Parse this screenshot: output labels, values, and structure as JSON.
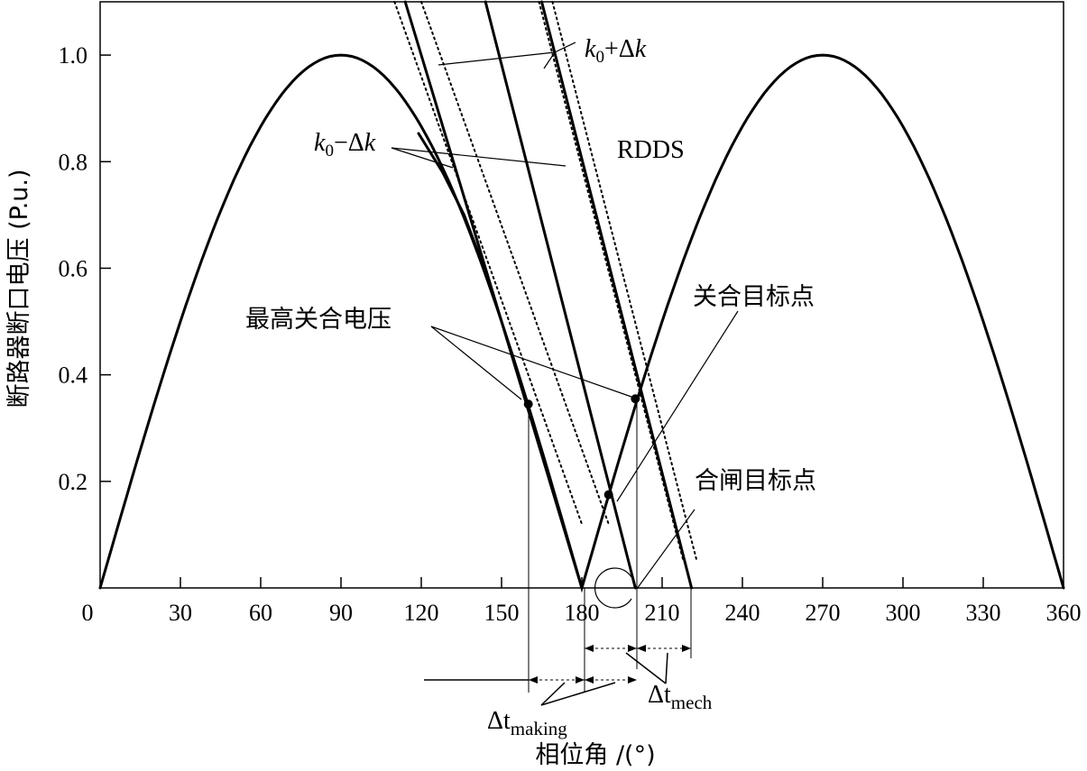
{
  "chart_data": {
    "type": "line",
    "xlabel": "相位角 /(°)",
    "ylabel": "断路器断口电压 (P.u.)",
    "xlim": [
      0,
      360
    ],
    "ylim": [
      0,
      1.1
    ],
    "x_ticks": [
      "0",
      "30",
      "60",
      "90",
      "120",
      "150",
      "180",
      "210",
      "240",
      "270",
      "300",
      "330",
      "360"
    ],
    "y_ticks": [
      "0.2",
      "0.4",
      "0.6",
      "0.8",
      "1.0"
    ],
    "grid": false,
    "series": [
      {
        "kind": "rdds",
        "x": [
          0,
          15,
          30,
          45,
          60,
          75,
          90,
          105,
          120,
          135,
          150,
          165,
          180,
          195,
          210,
          225,
          240,
          255,
          270,
          285,
          300,
          315,
          330,
          345,
          360
        ],
        "y": [
          0,
          0.259,
          0.5,
          0.707,
          0.866,
          0.966,
          1.0,
          0.966,
          0.866,
          0.707,
          0.5,
          0.259,
          0,
          0.259,
          0.5,
          0.707,
          0.866,
          0.966,
          1.0,
          0.966,
          0.866,
          0.707,
          0.5,
          0.259,
          0
        ]
      },
      {
        "kind": "rdds_left_tail",
        "x": [
          119,
          128,
          136,
          145
        ],
        "y": [
          0.853,
          0.78,
          0.7,
          0.58
        ]
      },
      {
        "kind": "rdds_solid",
        "x": [
          114,
          180
        ],
        "y": [
          1.1,
          0
        ]
      },
      {
        "kind": "rdds_solid",
        "x": [
          144,
          200
        ],
        "y": [
          1.1,
          0
        ]
      },
      {
        "kind": "rdds_solid",
        "x": [
          165,
          221
        ],
        "y": [
          1.1,
          0
        ]
      },
      {
        "kind": "rdds_dotted",
        "x": [
          110,
          180
        ],
        "y": [
          1.1,
          0.12
        ]
      },
      {
        "kind": "rdds_dotted",
        "x": [
          120,
          190
        ],
        "y": [
          1.1,
          0.12
        ]
      },
      {
        "kind": "rdds_dotted",
        "x": [
          164,
          218
        ],
        "y": [
          1.1,
          0.05
        ]
      },
      {
        "kind": "rdds_dotted",
        "x": [
          169,
          223
        ],
        "y": [
          1.1,
          0.05
        ]
      }
    ],
    "points": [
      {
        "x": 160,
        "y": 0.345
      },
      {
        "x": 200,
        "y": 0.355
      },
      {
        "x": 190,
        "y": 0.175
      }
    ],
    "annotations": {
      "k_plus": {
        "k": "k",
        "sub": "0",
        "rest": "+Δ",
        "k2": "k"
      },
      "k_minus": {
        "k": "k",
        "sub": "0",
        "rest": "−Δ",
        "k2": "k"
      },
      "rdds": "RDDS",
      "max_voltage": "最高关合电压",
      "close_target": "关合目标点",
      "switch_target": "合闸目标点",
      "dt_making": {
        "main": "Δt",
        "sub": "making"
      },
      "dt_mech": {
        "main": "Δt",
        "sub": "mech"
      }
    }
  }
}
